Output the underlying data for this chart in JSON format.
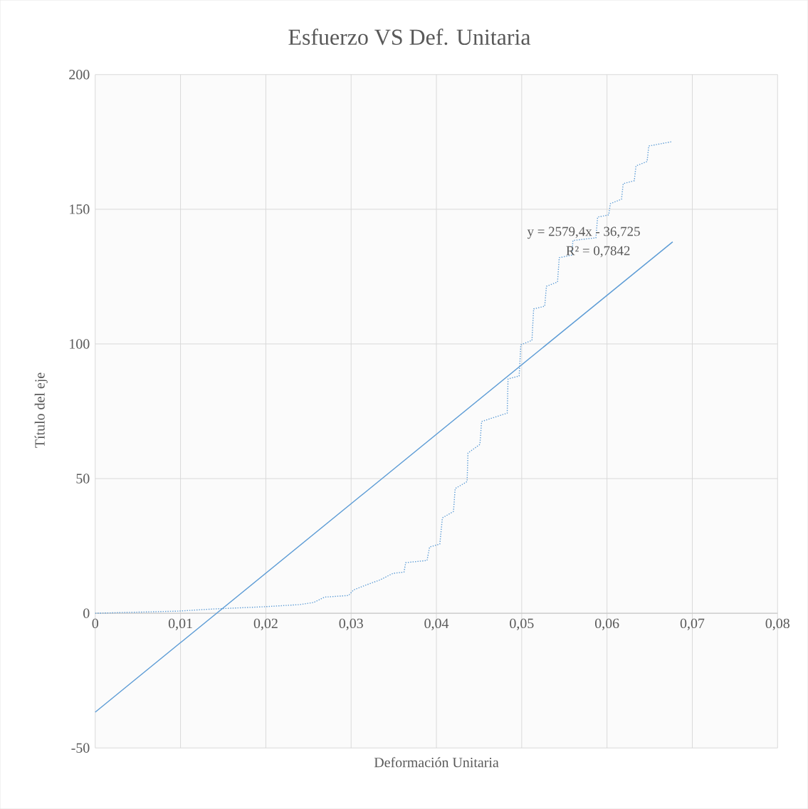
{
  "chart_data": {
    "type": "line",
    "title": "Esfuerzo VS Def. Unitaria",
    "xlabel": "Deformación Unitaria",
    "ylabel": "Título del eje",
    "annotations": [
      "y = 2579,4x - 36,725",
      "R² = 0,7842"
    ],
    "xlim": [
      0,
      0.08
    ],
    "ylim": [
      -50,
      200
    ],
    "xticks": [
      0,
      {
        "value": 0.01,
        "label": "0,01"
      },
      {
        "value": 0.02,
        "label": "0,02"
      },
      {
        "value": 0.03,
        "label": "0,03"
      },
      {
        "value": 0.04,
        "label": "0,04"
      },
      {
        "value": 0.05,
        "label": "0,05"
      },
      {
        "value": 0.06,
        "label": "0,06"
      },
      {
        "value": 0.07,
        "label": "0,07"
      },
      {
        "value": 0.08,
        "label": "0,08"
      }
    ],
    "yticks": [
      -50,
      0,
      50,
      100,
      150,
      200
    ],
    "grid": true,
    "marker": "none",
    "series": [
      {
        "color": "#5b9bd5",
        "line_style": "dotted",
        "x": [
          0,
          0.0097,
          0.0139,
          0.0197,
          0.0239,
          0.0256,
          0.0269,
          0.0297,
          0.0303,
          0.0316,
          0.0334,
          0.0349,
          0.0362,
          0.0364,
          0.0389,
          0.0392,
          0.0404,
          0.0407,
          0.042,
          0.0422,
          0.0436,
          0.0437,
          0.0451,
          0.0453,
          0.0483,
          0.0484,
          0.0497,
          0.0499,
          0.0512,
          0.0514,
          0.0527,
          0.0529,
          0.0542,
          0.0544,
          0.0559,
          0.056,
          0.0587,
          0.0589,
          0.0602,
          0.0604,
          0.0617,
          0.0619,
          0.0632,
          0.0634,
          0.0647,
          0.0649,
          0.0676
        ],
        "values": [
          0,
          0.8,
          1.6,
          2.4,
          3.2,
          4,
          6,
          6.6,
          8.7,
          10.3,
          12.4,
          14.8,
          15.3,
          18.8,
          19.6,
          24.6,
          25.7,
          35.4,
          37.8,
          46.3,
          48.9,
          59.5,
          62.7,
          71.2,
          74.3,
          87,
          88.1,
          99.7,
          101.3,
          113,
          114,
          121.4,
          123,
          132,
          133,
          138.4,
          139.4,
          147.1,
          147.9,
          152.1,
          153.7,
          159.5,
          160.6,
          166.1,
          167.7,
          173.5,
          175.1
        ]
      },
      {
        "color": "#5b9bd5",
        "line_style": "solid",
        "x": [
          0,
          0.0677
        ],
        "values": [
          -36.7,
          137.9
        ]
      }
    ]
  }
}
